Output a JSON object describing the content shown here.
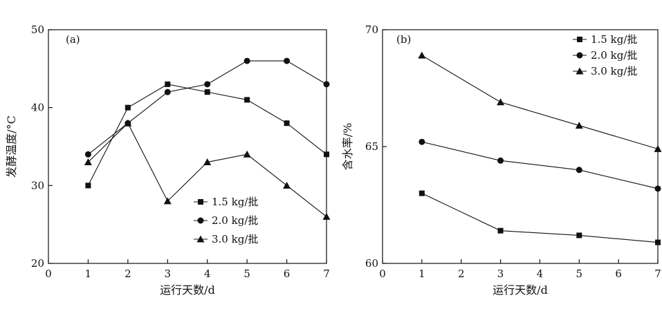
{
  "chart_data": [
    {
      "type": "line",
      "panel_label": "(a)",
      "xlabel": "运行天数/d",
      "ylabel": "发酵温度/°C",
      "xlim": [
        0,
        7
      ],
      "ylim": [
        20,
        50
      ],
      "xticks": [
        0,
        1,
        2,
        3,
        4,
        5,
        6,
        7
      ],
      "yticks": [
        20,
        30,
        40,
        50
      ],
      "legend_position": "lower-right",
      "grid": false,
      "series": [
        {
          "name": "1.5 kg/批",
          "marker": "square",
          "x": [
            1,
            2,
            3,
            4,
            5,
            6,
            7
          ],
          "y": [
            30,
            40,
            43,
            42,
            41,
            38,
            34
          ]
        },
        {
          "name": "2.0 kg/批",
          "marker": "circle",
          "x": [
            1,
            2,
            3,
            4,
            5,
            6,
            7
          ],
          "y": [
            34,
            38,
            42,
            43,
            46,
            46,
            43
          ]
        },
        {
          "name": "3.0 kg/批",
          "marker": "triangle",
          "x": [
            1,
            2,
            3,
            4,
            5,
            6,
            7
          ],
          "y": [
            33,
            38,
            28,
            33,
            34,
            30,
            26
          ]
        }
      ]
    },
    {
      "type": "line",
      "panel_label": "(b)",
      "xlabel": "运行天数/d",
      "ylabel": "含水率/%",
      "xlim": [
        0,
        7
      ],
      "ylim": [
        60,
        70
      ],
      "xticks": [
        0,
        1,
        2,
        3,
        4,
        5,
        6,
        7
      ],
      "yticks": [
        60,
        65,
        70
      ],
      "legend_position": "top-right",
      "grid": false,
      "series": [
        {
          "name": "1.5 kg/批",
          "marker": "square",
          "x": [
            1,
            3,
            5,
            7
          ],
          "y": [
            63.0,
            61.4,
            61.2,
            60.9
          ]
        },
        {
          "name": "2.0 kg/批",
          "marker": "circle",
          "x": [
            1,
            3,
            5,
            7
          ],
          "y": [
            65.2,
            64.4,
            64.0,
            63.2
          ]
        },
        {
          "name": "3.0 kg/批",
          "marker": "triangle",
          "x": [
            1,
            3,
            5,
            7
          ],
          "y": [
            68.9,
            66.9,
            65.9,
            64.9
          ]
        }
      ]
    }
  ]
}
